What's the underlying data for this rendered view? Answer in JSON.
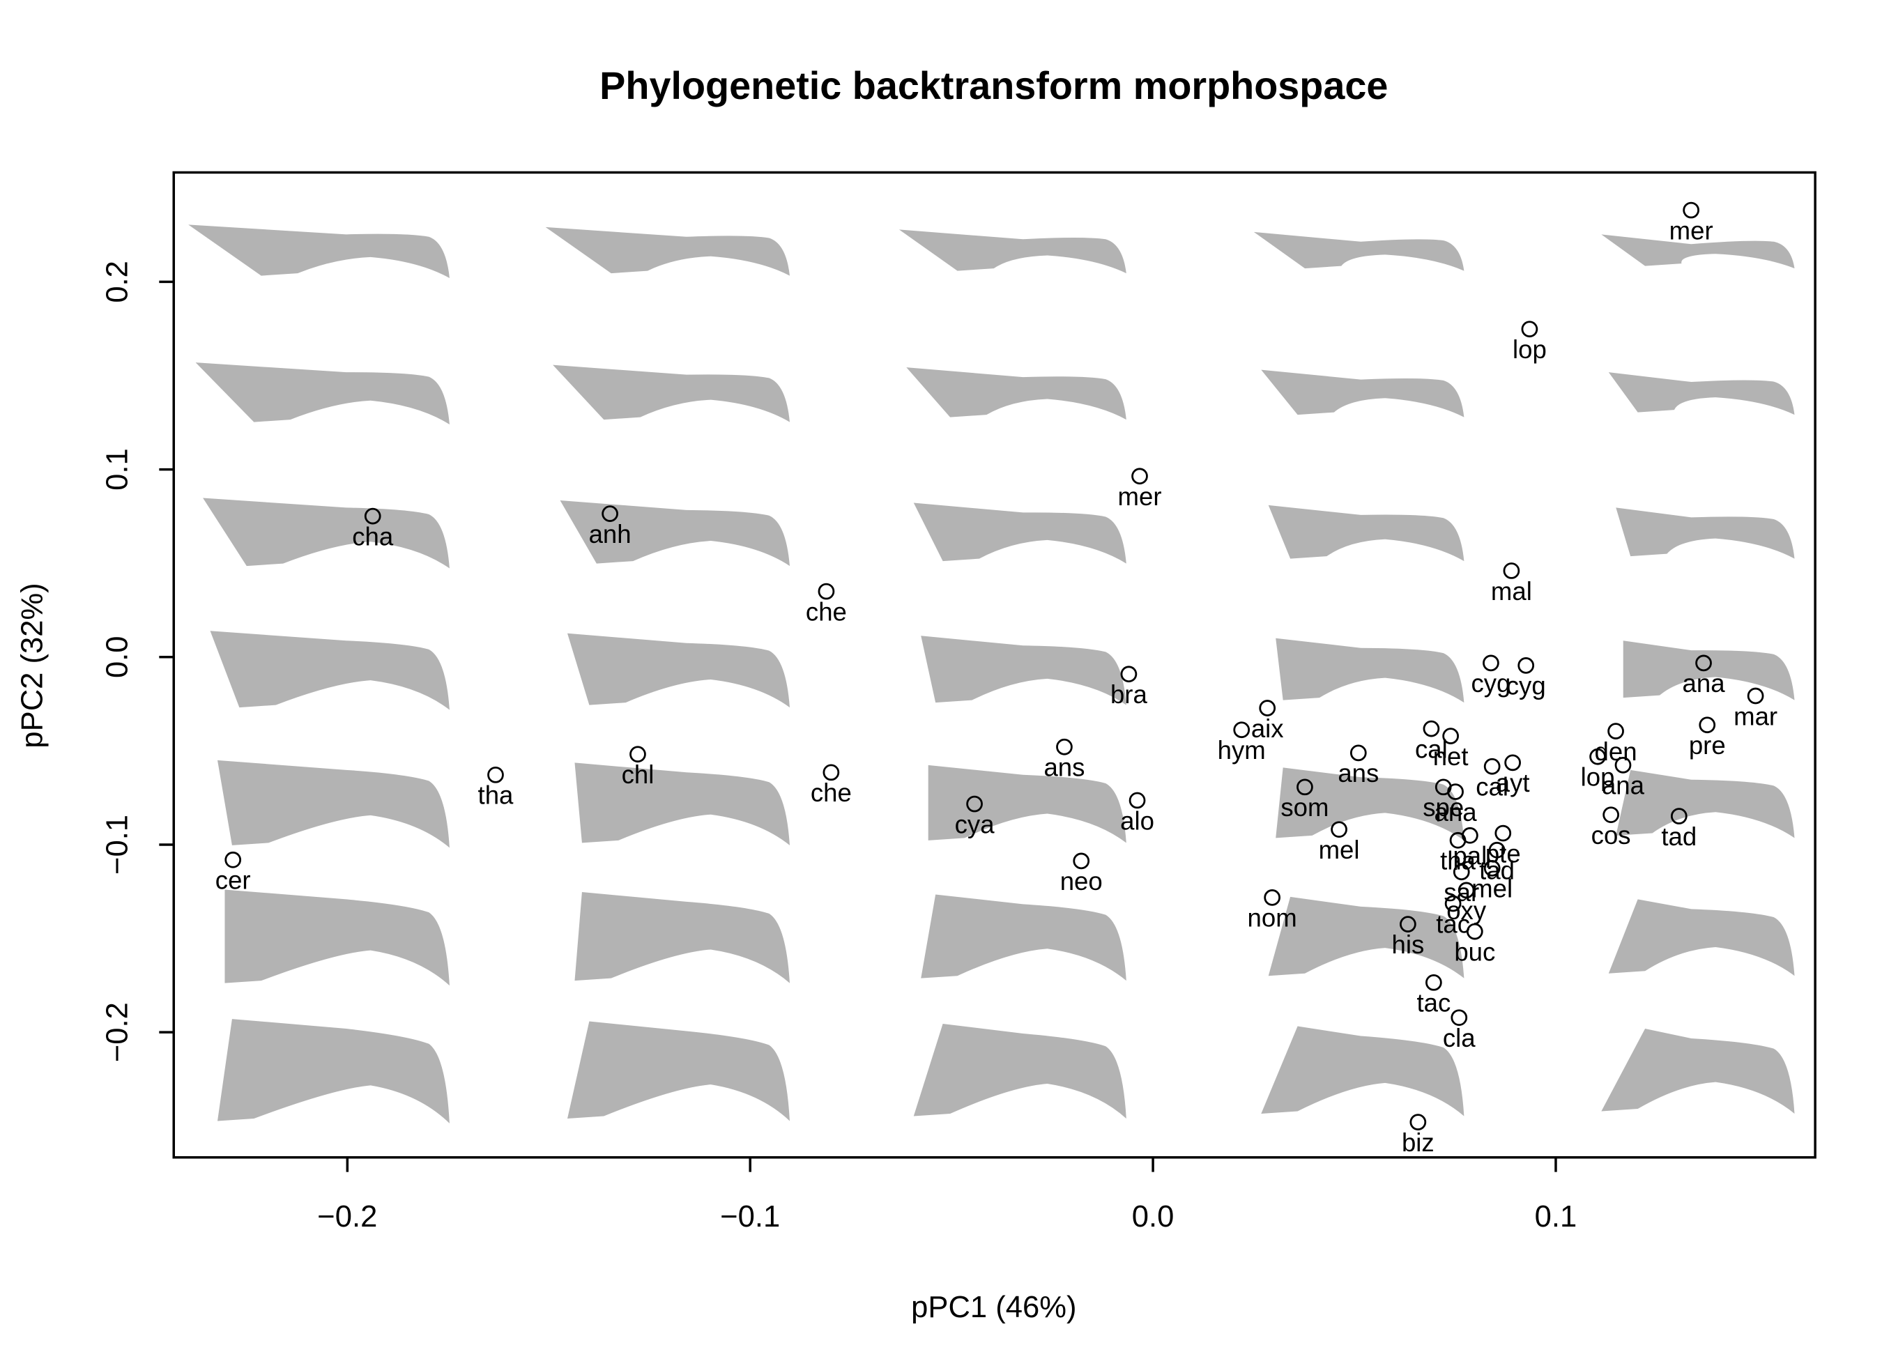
{
  "chart_data": {
    "type": "scatter",
    "title": "Phylogenetic backtransform morphospace",
    "x_label": "pPC1 (46%)",
    "y_label": "pPC2 (32%)",
    "xlim": [
      -0.2431,
      0.1644
    ],
    "ylim": [
      -0.2667,
      0.2583
    ],
    "xticks": [
      {
        "value": -0.2,
        "label": "−0.2"
      },
      {
        "value": -0.1,
        "label": "−0.1"
      },
      {
        "value": 0,
        "label": "0.0"
      },
      0.1
    ],
    "yticks": [
      {
        "value": -0.2,
        "label": "−0.2"
      },
      {
        "value": -0.1,
        "label": "−0.1"
      },
      {
        "value": 0,
        "label": "0.0"
      },
      0.1,
      0.2
    ],
    "color": "#000000",
    "labels": [
      "mer",
      "lop",
      "mer",
      "cha",
      "anh",
      "mal",
      "che",
      "bra",
      "cyg",
      "cyg",
      "ana",
      "mar",
      "pre",
      "aix",
      "hym",
      "ans",
      "cal",
      "net",
      "cal",
      "ayt",
      "den",
      "lop",
      "ana",
      "tha",
      "chl",
      "che",
      "ans",
      "cya",
      "alo",
      "som",
      "spe",
      "ana",
      "mel",
      "cos",
      "tad",
      "pte",
      "pal",
      "tha",
      "tad",
      "sar",
      "mel",
      "oxy",
      "tac",
      "cer",
      "neo",
      "nom",
      "his",
      "buc",
      "tac",
      "cla",
      "biz"
    ],
    "x": [
      0.1336,
      0.0935,
      -0.0033,
      -0.1937,
      -0.1348,
      0.089,
      -0.0811,
      -0.006,
      0.0839,
      0.0926,
      0.1367,
      0.1496,
      0.1376,
      0.0284,
      0.022,
      0.051,
      0.0691,
      0.0739,
      0.0842,
      0.0893,
      0.1149,
      0.1104,
      0.1167,
      -0.1632,
      -0.1279,
      -0.0799,
      -0.022,
      -0.0443,
      -0.0039,
      0.0377,
      0.0721,
      0.0751,
      0.0462,
      0.1137,
      0.1306,
      0.0869,
      0.0787,
      0.0757,
      0.0854,
      0.0766,
      0.0842,
      0.0778,
      0.0745,
      -0.2284,
      -0.0178,
      0.0296,
      0.0633,
      0.0799,
      0.0697,
      0.076,
      0.0658
    ],
    "values": [
      0.2382,
      0.1748,
      0.0964,
      0.0751,
      0.0764,
      0.046,
      0.035,
      -0.0091,
      -0.0032,
      -0.0045,
      -0.0032,
      -0.0207,
      -0.0362,
      -0.0272,
      -0.0388,
      -0.0511,
      -0.0382,
      -0.0421,
      -0.0583,
      -0.0563,
      -0.0395,
      -0.0531,
      -0.0576,
      -0.0628,
      -0.0518,
      -0.0615,
      -0.0479,
      -0.0783,
      -0.0764,
      -0.0693,
      -0.0693,
      -0.0718,
      -0.0919,
      -0.0841,
      -0.0848,
      -0.0939,
      -0.0951,
      -0.0977,
      -0.1029,
      -0.1146,
      -0.1126,
      -0.1243,
      -0.1314,
      -0.1081,
      -0.1087,
      -0.1282,
      -0.1424,
      -0.1463,
      -0.1735,
      -0.1922,
      -0.2479
    ]
  }
}
